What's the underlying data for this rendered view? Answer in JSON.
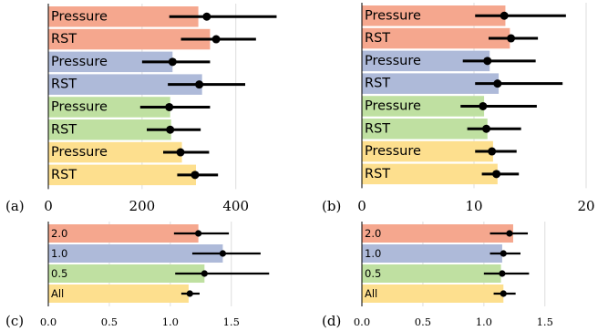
{
  "colors": {
    "red": "#f5a78e",
    "blue": "#aebad9",
    "green": "#bfe0a1",
    "yellow": "#fddf8e",
    "grid": "#dddddd",
    "marker": "#000000"
  },
  "chart_data": [
    {
      "panel": "(a)",
      "type": "bar",
      "orientation": "horizontal",
      "xlim": [
        0,
        560
      ],
      "xticks": [
        0,
        200,
        400
      ],
      "bars": [
        {
          "label": "Pressure",
          "color": "red",
          "value": 320,
          "mean": 338,
          "err_low": 258,
          "err_high": 487
        },
        {
          "label": "RST",
          "color": "red",
          "value": 345,
          "mean": 358,
          "err_low": 283,
          "err_high": 443
        },
        {
          "label": "Pressure",
          "color": "blue",
          "value": 265,
          "mean": 265,
          "err_low": 200,
          "err_high": 345
        },
        {
          "label": "RST",
          "color": "blue",
          "value": 328,
          "mean": 322,
          "err_low": 255,
          "err_high": 420
        },
        {
          "label": "Pressure",
          "color": "green",
          "value": 260,
          "mean": 258,
          "err_low": 196,
          "err_high": 345
        },
        {
          "label": "RST",
          "color": "green",
          "value": 262,
          "mean": 260,
          "err_low": 210,
          "err_high": 325
        },
        {
          "label": "Pressure",
          "color": "yellow",
          "value": 285,
          "mean": 282,
          "err_low": 245,
          "err_high": 343
        },
        {
          "label": "RST",
          "color": "yellow",
          "value": 315,
          "mean": 313,
          "err_low": 275,
          "err_high": 362
        }
      ]
    },
    {
      "panel": "(b)",
      "type": "bar",
      "orientation": "horizontal",
      "xlim": [
        0,
        20
      ],
      "xticks": [
        0,
        10,
        20
      ],
      "bars": [
        {
          "label": "Pressure",
          "color": "red",
          "value": 12.8,
          "mean": 12.7,
          "err_low": 10.1,
          "err_high": 18.2
        },
        {
          "label": "RST",
          "color": "red",
          "value": 13.2,
          "mean": 13.3,
          "err_low": 11.3,
          "err_high": 15.7
        },
        {
          "label": "Pressure",
          "color": "blue",
          "value": 11.4,
          "mean": 11.2,
          "err_low": 9.0,
          "err_high": 15.5
        },
        {
          "label": "RST",
          "color": "blue",
          "value": 12.2,
          "mean": 12.1,
          "err_low": 10.1,
          "err_high": 17.9
        },
        {
          "label": "Pressure",
          "color": "green",
          "value": 10.9,
          "mean": 10.8,
          "err_low": 8.8,
          "err_high": 15.6
        },
        {
          "label": "RST",
          "color": "green",
          "value": 11.2,
          "mean": 11.1,
          "err_low": 9.4,
          "err_high": 14.2
        },
        {
          "label": "Pressure",
          "color": "yellow",
          "value": 11.7,
          "mean": 11.6,
          "err_low": 10.1,
          "err_high": 13.8
        },
        {
          "label": "RST",
          "color": "yellow",
          "value": 12.1,
          "mean": 12.0,
          "err_low": 10.7,
          "err_high": 14.0
        }
      ]
    },
    {
      "panel": "(c)",
      "type": "bar",
      "orientation": "horizontal",
      "xlim": [
        0,
        1.95
      ],
      "xticks": [
        0.0,
        0.5,
        1.0,
        1.5
      ],
      "xtick_labels": [
        "0.0",
        "0.5",
        "1.0",
        "1.5"
      ],
      "bars": [
        {
          "label": "2.0",
          "color": "red",
          "value": 1.23,
          "mean": 1.23,
          "err_low": 1.03,
          "err_high": 1.48
        },
        {
          "label": "1.0",
          "color": "blue",
          "value": 1.43,
          "mean": 1.43,
          "err_low": 1.18,
          "err_high": 1.74
        },
        {
          "label": "0.5",
          "color": "green",
          "value": 1.28,
          "mean": 1.28,
          "err_low": 1.04,
          "err_high": 1.81
        },
        {
          "label": "All",
          "color": "yellow",
          "value": 1.15,
          "mean": 1.16,
          "err_low": 1.09,
          "err_high": 1.24
        }
      ]
    },
    {
      "panel": "(d)",
      "type": "bar",
      "orientation": "horizontal",
      "xlim": [
        0,
        1.95
      ],
      "xticks": [
        0.0,
        0.5,
        1.0,
        1.5
      ],
      "xtick_labels": [
        "0.0",
        "0.5",
        "1.0",
        "1.5"
      ],
      "bars": [
        {
          "label": "2.0",
          "color": "red",
          "value": 1.24,
          "mean": 1.21,
          "err_low": 1.05,
          "err_high": 1.36
        },
        {
          "label": "1.0",
          "color": "blue",
          "value": 1.15,
          "mean": 1.16,
          "err_low": 1.05,
          "err_high": 1.3
        },
        {
          "label": "0.5",
          "color": "green",
          "value": 1.14,
          "mean": 1.15,
          "err_low": 1.0,
          "err_high": 1.37
        },
        {
          "label": "All",
          "color": "yellow",
          "value": 1.16,
          "mean": 1.16,
          "err_low": 1.08,
          "err_high": 1.26
        }
      ]
    }
  ]
}
